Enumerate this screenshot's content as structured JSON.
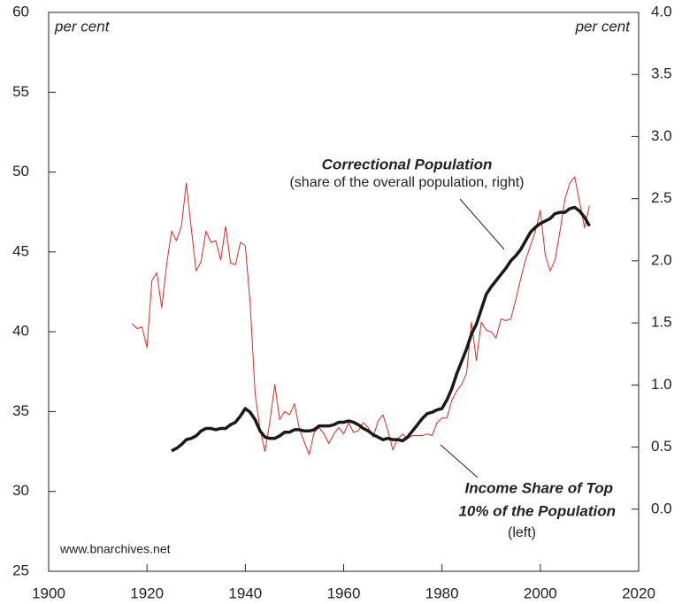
{
  "chart_data": {
    "type": "line",
    "annotations": {
      "left_unit": "per cent",
      "right_unit": "per cent",
      "correctional_title": "Correctional Population",
      "correctional_sub": "(share of the overall population, right)",
      "income_line1": "Income Share of Top",
      "income_line2": "10% of the Population",
      "income_sub": "(left)",
      "source": "www.bnarchives.net"
    },
    "xlim": [
      1900,
      2020
    ],
    "xticks": [
      1900,
      1920,
      1940,
      1960,
      1980,
      2000,
      2020
    ],
    "ylim": [
      25,
      60
    ],
    "yticks": [
      25,
      30,
      35,
      40,
      45,
      50,
      55,
      60
    ],
    "y2lim": [
      -0.5,
      4.0
    ],
    "y2ticks": [
      {
        "value": 0,
        "label": "0.0"
      },
      {
        "value": 0.5,
        "label": "0.5"
      },
      {
        "value": 1,
        "label": "1.0"
      },
      {
        "value": 1.5,
        "label": "1.5"
      },
      {
        "value": 2,
        "label": "2.0"
      },
      {
        "value": 2.5,
        "label": "2.5"
      },
      {
        "value": 3,
        "label": "3.0"
      },
      {
        "value": 3.5,
        "label": "3.5"
      },
      {
        "value": 4,
        "label": "4.0"
      }
    ],
    "series": [
      {
        "color": "#e8231f",
        "axis": "y",
        "x": [
          1917,
          1918,
          1919,
          1920,
          1921,
          1922,
          1923,
          1924,
          1925,
          1926,
          1927,
          1928,
          1929,
          1930,
          1931,
          1932,
          1933,
          1934,
          1935,
          1936,
          1937,
          1938,
          1939,
          1940,
          1941,
          1942,
          1943,
          1944,
          1945,
          1946,
          1947,
          1948,
          1949,
          1950,
          1951,
          1952,
          1953,
          1954,
          1955,
          1956,
          1957,
          1958,
          1959,
          1960,
          1961,
          1962,
          1963,
          1964,
          1965,
          1966,
          1967,
          1968,
          1969,
          1970,
          1971,
          1972,
          1973,
          1974,
          1975,
          1976,
          1977,
          1978,
          1979,
          1980,
          1981,
          1982,
          1983,
          1984,
          1985,
          1986,
          1987,
          1988,
          1989,
          1990,
          1991,
          1992,
          1993,
          1994,
          1995,
          1996,
          1997,
          1998,
          1999,
          2000,
          2001,
          2002,
          2003,
          2004,
          2005,
          2006,
          2007,
          2008,
          2009,
          2010
        ],
        "values": [
          40.5,
          40.2,
          40.3,
          39.0,
          43.2,
          43.7,
          41.5,
          44.2,
          46.3,
          45.7,
          46.6,
          49.3,
          46.5,
          43.8,
          44.4,
          46.3,
          45.6,
          45.7,
          44.5,
          46.6,
          44.3,
          44.2,
          45.6,
          45.4,
          41.7,
          36.1,
          33.9,
          32.5,
          34.4,
          36.7,
          34.5,
          35.0,
          34.8,
          35.5,
          33.9,
          33.1,
          32.3,
          33.7,
          34.0,
          33.6,
          33.0,
          33.6,
          34.0,
          33.6,
          34.3,
          33.7,
          33.8,
          34.3,
          34.0,
          33.4,
          34.4,
          34.8,
          33.8,
          32.6,
          33.3,
          33.6,
          33.3,
          33.5,
          33.5,
          33.5,
          33.6,
          33.5,
          34.3,
          34.6,
          34.6,
          35.7,
          36.3,
          36.7,
          37.4,
          40.6,
          38.2,
          40.6,
          40.1,
          40.0,
          39.6,
          40.8,
          40.7,
          40.8,
          42.0,
          43.3,
          44.5,
          45.4,
          46.3,
          47.6,
          44.8,
          43.8,
          44.5,
          46.3,
          48.3,
          49.3,
          49.7,
          48.1,
          46.5,
          47.9
        ]
      },
      {
        "color": "#1a1a1a",
        "axis": "y2",
        "x": [
          1925,
          1926,
          1927,
          1928,
          1929,
          1930,
          1931,
          1932,
          1933,
          1934,
          1935,
          1936,
          1937,
          1938,
          1939,
          1940,
          1941,
          1942,
          1943,
          1944,
          1945,
          1946,
          1947,
          1948,
          1949,
          1950,
          1951,
          1952,
          1953,
          1954,
          1955,
          1956,
          1957,
          1958,
          1959,
          1960,
          1961,
          1962,
          1963,
          1964,
          1965,
          1966,
          1967,
          1968,
          1969,
          1970,
          1971,
          1972,
          1973,
          1974,
          1975,
          1976,
          1977,
          1978,
          1979,
          1980,
          1981,
          1982,
          1983,
          1984,
          1985,
          1986,
          1987,
          1988,
          1989,
          1990,
          1991,
          1992,
          1993,
          1994,
          1995,
          1996,
          1997,
          1998,
          1999,
          2000,
          2001,
          2002,
          2003,
          2004,
          2005,
          2006,
          2007,
          2008,
          2009,
          2010
        ],
        "values": [
          0.47,
          0.49,
          0.52,
          0.56,
          0.57,
          0.59,
          0.63,
          0.65,
          0.65,
          0.64,
          0.65,
          0.65,
          0.68,
          0.7,
          0.75,
          0.81,
          0.78,
          0.72,
          0.63,
          0.58,
          0.57,
          0.57,
          0.59,
          0.62,
          0.62,
          0.64,
          0.64,
          0.63,
          0.63,
          0.64,
          0.67,
          0.67,
          0.67,
          0.68,
          0.7,
          0.7,
          0.71,
          0.7,
          0.68,
          0.65,
          0.63,
          0.6,
          0.58,
          0.56,
          0.57,
          0.56,
          0.56,
          0.55,
          0.58,
          0.63,
          0.68,
          0.73,
          0.77,
          0.78,
          0.8,
          0.81,
          0.88,
          0.97,
          1.09,
          1.19,
          1.29,
          1.41,
          1.49,
          1.61,
          1.73,
          1.79,
          1.84,
          1.89,
          1.94,
          2.0,
          2.04,
          2.09,
          2.16,
          2.23,
          2.27,
          2.3,
          2.32,
          2.34,
          2.38,
          2.39,
          2.39,
          2.42,
          2.43,
          2.4,
          2.35,
          2.28
        ]
      }
    ]
  }
}
